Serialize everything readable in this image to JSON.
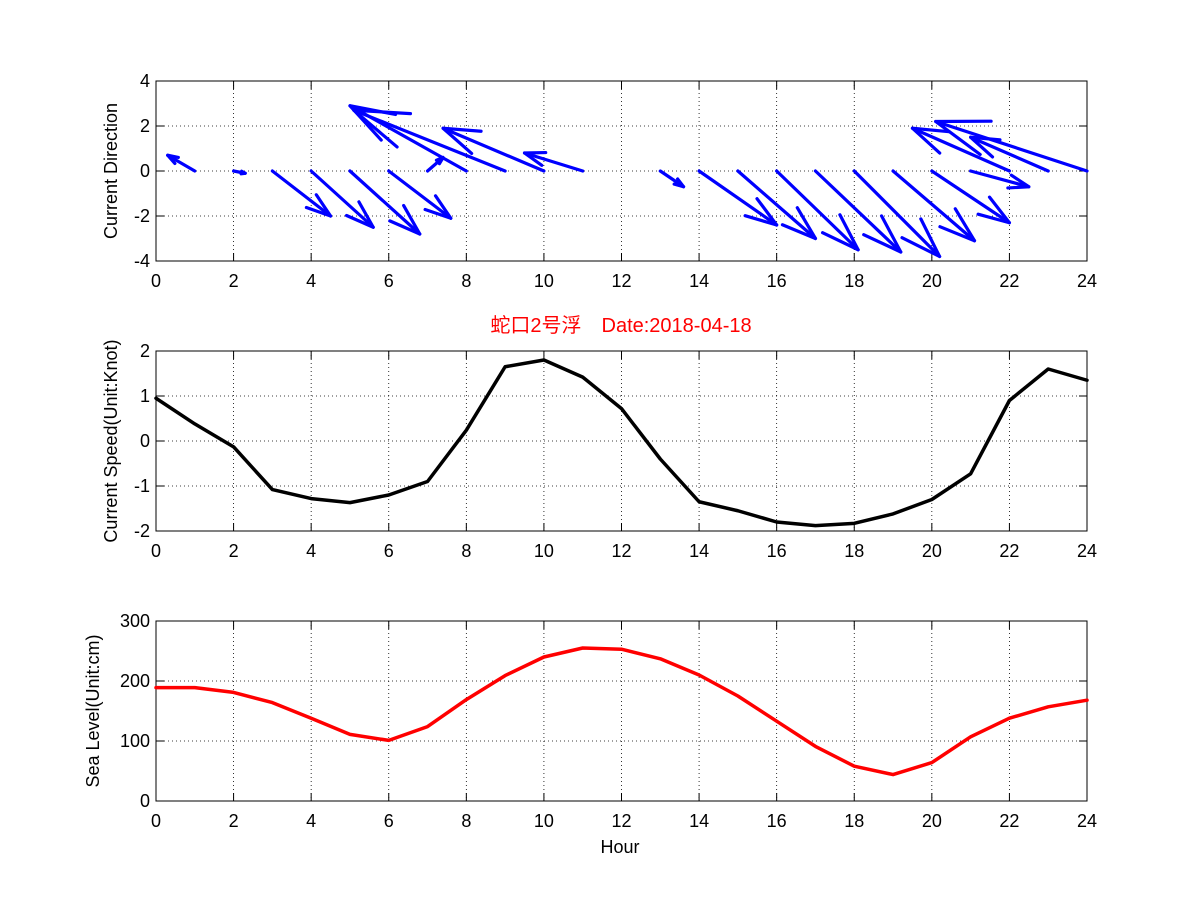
{
  "figure": {
    "title": "蛇口2号浮　Date:2018-04-18",
    "xlabel": "Hour"
  },
  "colors": {
    "arrows": "#0000ff",
    "speed_line": "#000000",
    "level_line": "#ff0000",
    "title": "#ff0000"
  },
  "chart_data": [
    {
      "type": "quiver",
      "ylabel": "Current Direction",
      "xlim": [
        0,
        24
      ],
      "ylim": [
        -4,
        4
      ],
      "xticks": [
        0,
        2,
        4,
        6,
        8,
        10,
        12,
        14,
        16,
        18,
        20,
        22,
        24
      ],
      "yticks": [
        -4,
        -2,
        0,
        2,
        4
      ],
      "grid": true,
      "vectors": [
        {
          "x": 1,
          "u": -0.7,
          "v": 0.7
        },
        {
          "x": 2,
          "u": 0.3,
          "v": -0.1
        },
        {
          "x": 3,
          "u": 1.5,
          "v": -2.0
        },
        {
          "x": 4,
          "u": 1.6,
          "v": -2.5
        },
        {
          "x": 5,
          "u": 1.8,
          "v": -2.8
        },
        {
          "x": 6,
          "u": 1.6,
          "v": -2.1
        },
        {
          "x": 7,
          "u": 0.4,
          "v": 0.6
        },
        {
          "x": 8,
          "u": -3.0,
          "v": 2.9
        },
        {
          "x": 9,
          "u": -3.9,
          "v": 2.7
        },
        {
          "x": 10,
          "u": -2.6,
          "v": 1.9
        },
        {
          "x": 11,
          "u": -1.5,
          "v": 0.8
        },
        {
          "x": 13,
          "u": 0.6,
          "v": -0.7
        },
        {
          "x": 14,
          "u": 2.0,
          "v": -2.4
        },
        {
          "x": 15,
          "u": 2.0,
          "v": -3.0
        },
        {
          "x": 16,
          "u": 2.1,
          "v": -3.5
        },
        {
          "x": 17,
          "u": 2.2,
          "v": -3.6
        },
        {
          "x": 18,
          "u": 2.2,
          "v": -3.8
        },
        {
          "x": 19,
          "u": 2.1,
          "v": -3.1
        },
        {
          "x": 20,
          "u": 2.0,
          "v": -2.3
        },
        {
          "x": 21,
          "u": 1.5,
          "v": -0.7
        },
        {
          "x": 22,
          "u": -2.5,
          "v": 1.9
        },
        {
          "x": 23,
          "u": -2.0,
          "v": 1.5
        },
        {
          "x": 24,
          "u": -3.9,
          "v": 2.2
        }
      ]
    },
    {
      "type": "line",
      "ylabel": "Current Speed(Unit:Knot)",
      "xlim": [
        0,
        24
      ],
      "ylim": [
        -2,
        2
      ],
      "xticks": [
        0,
        2,
        4,
        6,
        8,
        10,
        12,
        14,
        16,
        18,
        20,
        22,
        24
      ],
      "yticks": [
        -2,
        -1,
        0,
        1,
        2
      ],
      "grid": true,
      "x": [
        0,
        1,
        2,
        3,
        4,
        5,
        6,
        7,
        8,
        9,
        10,
        11,
        12,
        13,
        14,
        15,
        16,
        17,
        18,
        19,
        20,
        21,
        22,
        23,
        24
      ],
      "y": [
        0.95,
        0.38,
        -0.13,
        -1.08,
        -1.28,
        -1.37,
        -1.2,
        -0.9,
        0.24,
        1.65,
        1.8,
        1.42,
        0.72,
        -0.4,
        -1.35,
        -1.55,
        -1.8,
        -1.88,
        -1.83,
        -1.62,
        -1.3,
        -0.73,
        0.9,
        1.6,
        1.35
      ]
    },
    {
      "type": "line",
      "ylabel": "Sea Level(Unit:cm)",
      "xlabel": "Hour",
      "xlim": [
        0,
        24
      ],
      "ylim": [
        0,
        300
      ],
      "xticks": [
        0,
        2,
        4,
        6,
        8,
        10,
        12,
        14,
        16,
        18,
        20,
        22,
        24
      ],
      "yticks": [
        0,
        100,
        200,
        300
      ],
      "grid": true,
      "x": [
        0,
        1,
        2,
        3,
        4,
        5,
        6,
        7,
        8,
        9,
        10,
        11,
        12,
        13,
        14,
        15,
        16,
        17,
        18,
        19,
        20,
        21,
        22,
        23,
        24
      ],
      "y": [
        189,
        189,
        181,
        164,
        138,
        111,
        101,
        124,
        169,
        209,
        240,
        255,
        253,
        237,
        210,
        175,
        133,
        91,
        58,
        44,
        64,
        107,
        138,
        157,
        168
      ]
    }
  ]
}
